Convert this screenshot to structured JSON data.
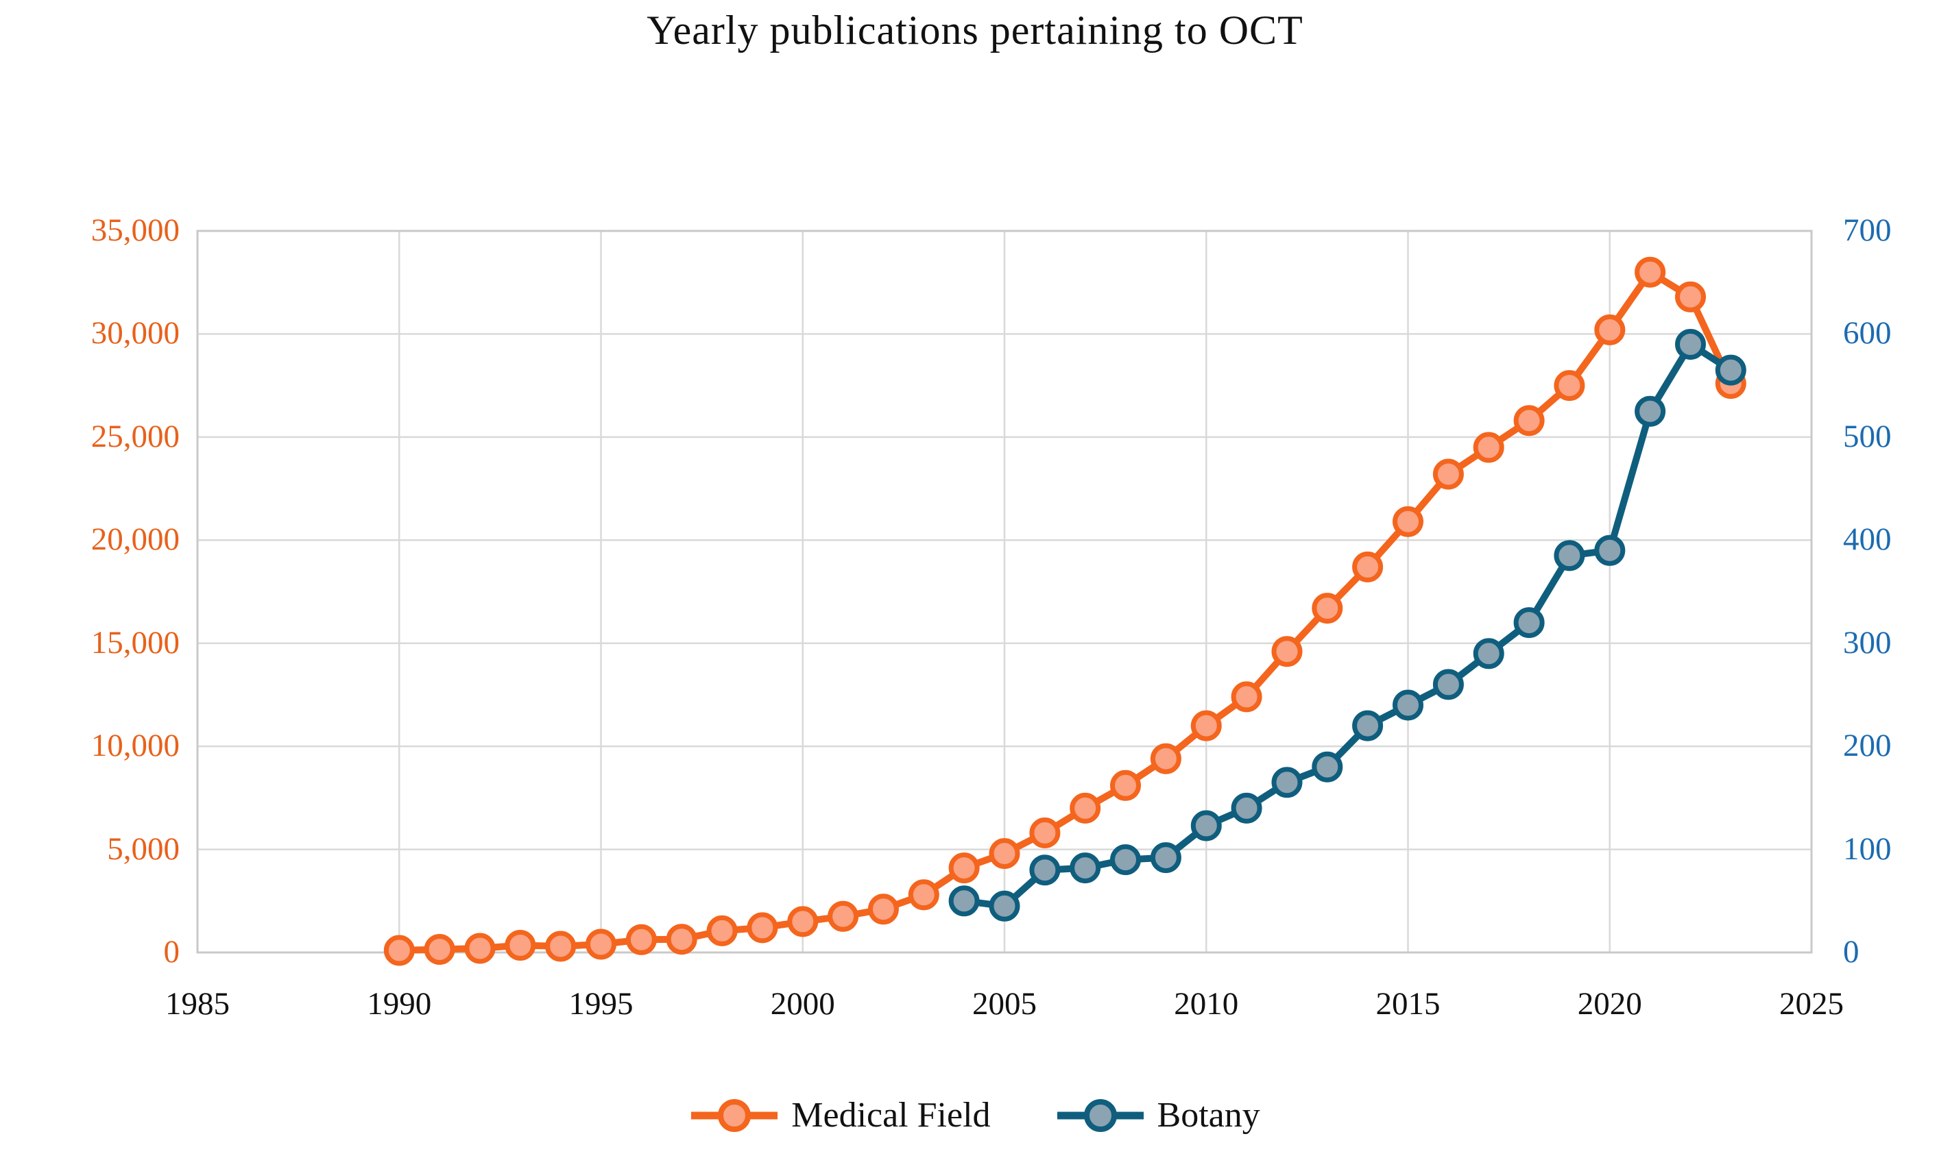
{
  "chart_data": {
    "type": "line",
    "title": "Yearly publications pertaining to OCT",
    "grid": true,
    "legend_position": "bottom",
    "background": "#ffffff",
    "gridline_color": "#d9d9d9",
    "border_color": "#c9c9c9",
    "x_axis": {
      "min": 1985,
      "max": 2025,
      "step": 5,
      "label_color": "#111111",
      "tick_labels": [
        "1985",
        "1990",
        "1995",
        "2000",
        "2005",
        "2010",
        "2015",
        "2020",
        "2025"
      ]
    },
    "left_axis": {
      "min": 0,
      "max": 35000,
      "step": 5000,
      "label_color": "#e8611b",
      "tick_labels": [
        "0",
        "5,000",
        "10,000",
        "15,000",
        "20,000",
        "25,000",
        "30,000",
        "35,000"
      ]
    },
    "right_axis": {
      "min": 0,
      "max": 700,
      "step": 100,
      "label_color": "#1c6bb0",
      "tick_labels": [
        "0",
        "100",
        "200",
        "300",
        "400",
        "500",
        "600",
        "700"
      ]
    },
    "series": [
      {
        "name": "Medical Field",
        "axis": "left",
        "line_color": "#f4651d",
        "marker_fill": "#fba383",
        "x": [
          1990,
          1991,
          1992,
          1993,
          1994,
          1995,
          1996,
          1997,
          1998,
          1999,
          2000,
          2001,
          2002,
          2003,
          2004,
          2005,
          2006,
          2007,
          2008,
          2009,
          2010,
          2011,
          2012,
          2013,
          2014,
          2015,
          2016,
          2017,
          2018,
          2019,
          2020,
          2021,
          2022,
          2023
        ],
        "values": [
          100,
          150,
          200,
          350,
          300,
          400,
          620,
          640,
          1050,
          1200,
          1500,
          1750,
          2100,
          2800,
          4100,
          4800,
          5800,
          7000,
          8100,
          9400,
          11000,
          12400,
          14600,
          16700,
          18700,
          20900,
          23200,
          24500,
          25800,
          27500,
          30200,
          33000,
          31800,
          27600
        ]
      },
      {
        "name": "Botany",
        "axis": "right",
        "line_color": "#0f5e7e",
        "marker_fill": "#8ca3b2",
        "x": [
          2004,
          2005,
          2006,
          2007,
          2008,
          2009,
          2010,
          2011,
          2012,
          2013,
          2014,
          2015,
          2016,
          2017,
          2018,
          2019,
          2020,
          2021,
          2022,
          2023
        ],
        "values": [
          50,
          45,
          80,
          82,
          90,
          92,
          123,
          140,
          165,
          180,
          220,
          240,
          260,
          290,
          320,
          385,
          390,
          525,
          590,
          565
        ]
      }
    ]
  }
}
